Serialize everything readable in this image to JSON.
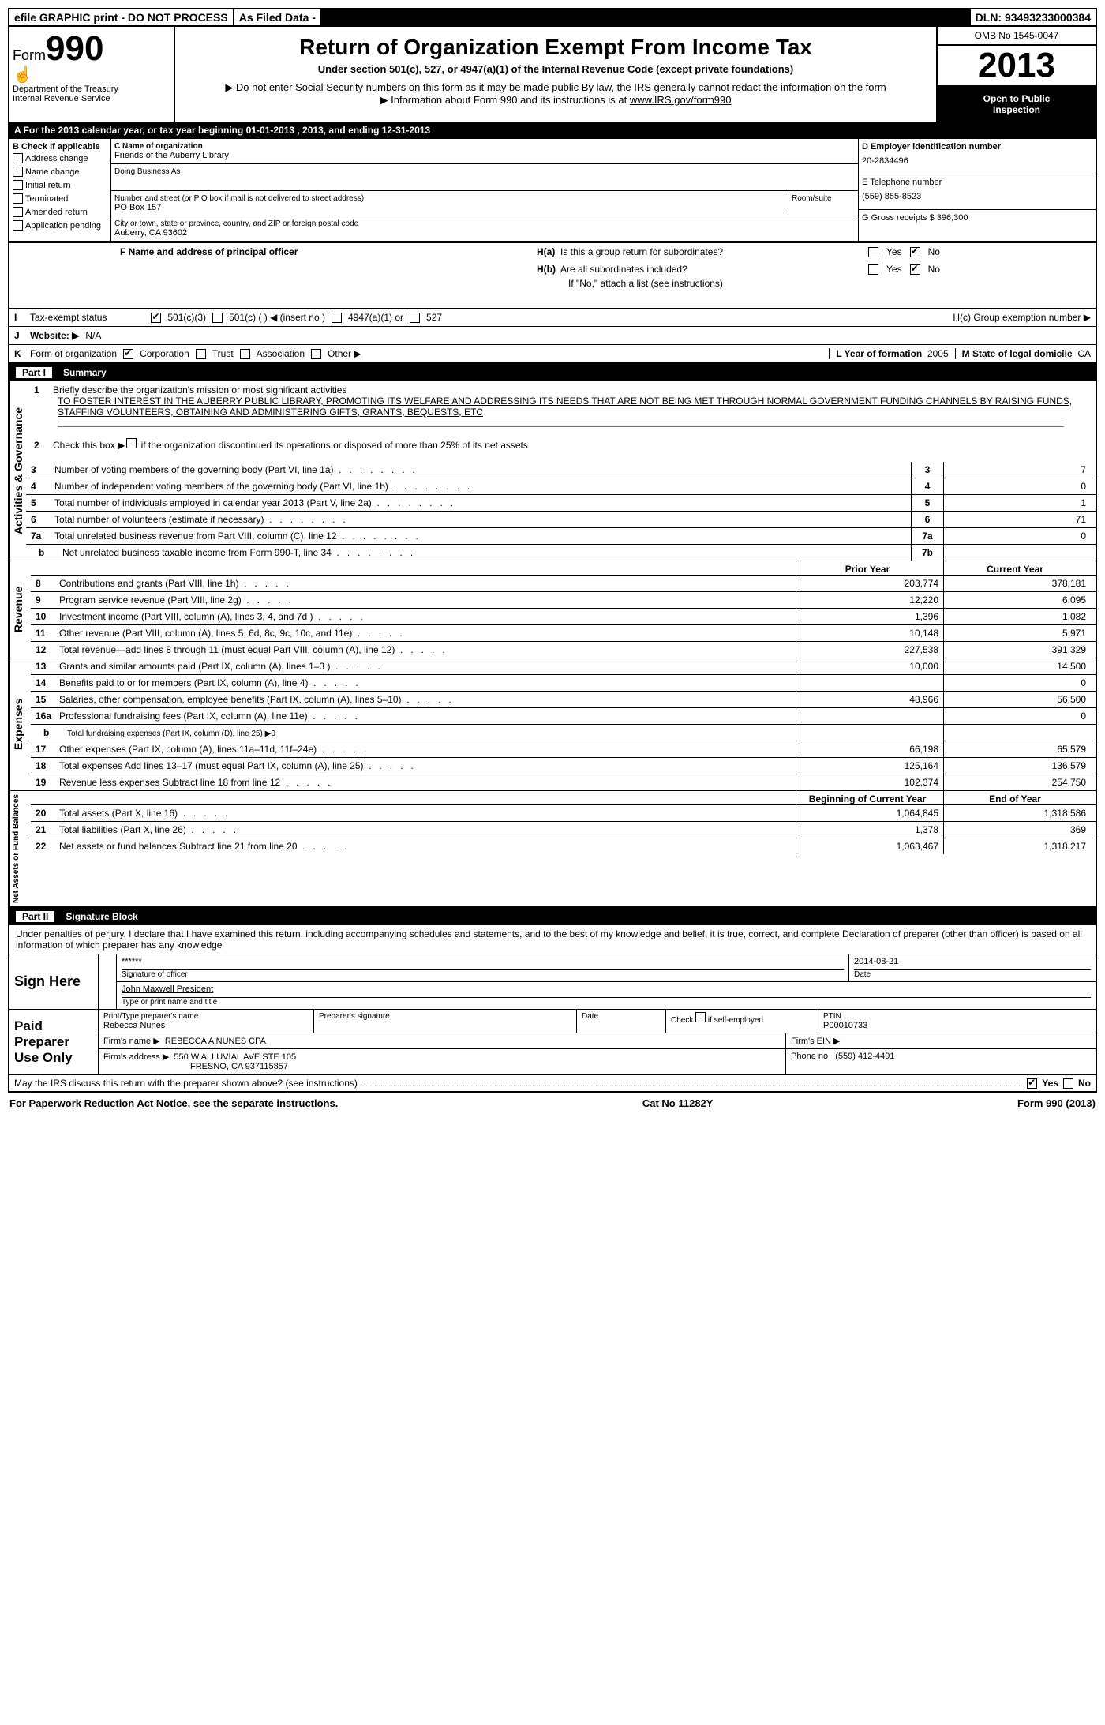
{
  "topbar": {
    "efile": "efile GRAPHIC print - DO NOT PROCESS",
    "asfiled": "As Filed Data -",
    "dln_label": "DLN:",
    "dln": "93493233000384"
  },
  "header": {
    "form_label": "Form",
    "form_num": "990",
    "dept1": "Department of the Treasury",
    "dept2": "Internal Revenue Service",
    "title": "Return of Organization Exempt From Income Tax",
    "sub1": "Under section 501(c), 527, or 4947(a)(1) of the Internal Revenue Code (except private foundations)",
    "sub2": "Do not enter Social Security numbers on this form as it may be made public  By law, the IRS generally cannot redact the information on the form",
    "sub3": "Information about Form 990 and its instructions is at ",
    "sub3_link": "www.IRS.gov/form990",
    "omb": "OMB No  1545-0047",
    "year": "2013",
    "black1": "Open to Public",
    "black2": "Inspection"
  },
  "rowA": "A  For the 2013 calendar year, or tax year beginning 01-01-2013     , 2013, and ending 12-31-2013",
  "B": {
    "label": "B  Check if applicable",
    "items": [
      "Address change",
      "Name change",
      "Initial return",
      "Terminated",
      "Amended return",
      "Application pending"
    ]
  },
  "C": {
    "name_lbl": "C Name of organization",
    "name": "Friends of the Auberry Library",
    "dba_lbl": "Doing Business As",
    "addr_lbl": "Number and street (or P O  box if mail is not delivered to street address)",
    "room_lbl": "Room/suite",
    "addr": "PO Box 157",
    "city_lbl": "City or town, state or province, country, and ZIP or foreign postal code",
    "city": "Auberry, CA  93602"
  },
  "D": {
    "lbl": "D Employer identification number",
    "val": "20-2834496"
  },
  "E": {
    "lbl": "E Telephone number",
    "val": "(559) 855-8523"
  },
  "G": {
    "lbl": "G Gross receipts $",
    "val": "396,300"
  },
  "F": {
    "lbl": "F   Name and address of principal officer"
  },
  "H": {
    "a": "H(a)  Is this a group return for subordinates?",
    "b": "H(b)  Are all subordinates included?",
    "b2": "If \"No,\" attach a list  (see instructions)",
    "c": "H(c)   Group exemption number ▶",
    "yes": "Yes",
    "no": "No"
  },
  "I": {
    "lbl": "I   Tax-exempt status",
    "o1": "501(c)(3)",
    "o2": "501(c) (  ) ◀ (insert no )",
    "o3": "4947(a)(1) or",
    "o4": "527"
  },
  "J": {
    "lbl": "J   Website: ▶",
    "val": "N/A"
  },
  "K": {
    "lbl": "K Form of organization",
    "o1": "Corporation",
    "o2": "Trust",
    "o3": "Association",
    "o4": "Other ▶"
  },
  "L": {
    "lbl": "L Year of formation",
    "val": "2005"
  },
  "M": {
    "lbl": "M State of legal domicile",
    "val": "CA"
  },
  "part1": {
    "part": "Part I",
    "title": "Summary"
  },
  "mission": {
    "n1": "1",
    "l1": "Briefly describe the organization's mission or most significant activities",
    "text": "TO FOSTER INTEREST IN THE AUBERRY PUBLIC LIBRARY, PROMOTING ITS WELFARE AND ADDRESSING ITS NEEDS THAT ARE NOT BEING MET THROUGH NORMAL GOVERNMENT FUNDING CHANNELS  BY RAISING FUNDS, STAFFING VOLUNTEERS, OBTAINING AND ADMINISTERING GIFTS, GRANTS, BEQUESTS, ETC",
    "n2": "2",
    "l2": "Check this box ▶     if the organization discontinued its operations or disposed of more than 25% of its net assets"
  },
  "governance": {
    "label": "Activities & Governance",
    "rows": [
      {
        "n": "3",
        "t": "Number of voting members of the governing body (Part VI, line 1a)",
        "b": "3",
        "v": "7"
      },
      {
        "n": "4",
        "t": "Number of independent voting members of the governing body (Part VI, line 1b)",
        "b": "4",
        "v": "0"
      },
      {
        "n": "5",
        "t": "Total number of individuals employed in calendar year 2013 (Part V, line 2a)",
        "b": "5",
        "v": "1"
      },
      {
        "n": "6",
        "t": "Total number of volunteers (estimate if necessary)",
        "b": "6",
        "v": "71"
      },
      {
        "n": "7a",
        "t": "Total unrelated business revenue from Part VIII, column (C), line 12",
        "b": "7a",
        "v": "0"
      },
      {
        "n": "b",
        "t": "Net unrelated business taxable income from Form 990-T, line 34",
        "b": "7b",
        "v": "",
        "sub": true
      }
    ]
  },
  "revenue": {
    "label": "Revenue",
    "hdr_prior": "Prior Year",
    "hdr_curr": "Current Year",
    "rows": [
      {
        "n": "8",
        "t": "Contributions and grants (Part VIII, line 1h)",
        "p": "203,774",
        "c": "378,181"
      },
      {
        "n": "9",
        "t": "Program service revenue (Part VIII, line 2g)",
        "p": "12,220",
        "c": "6,095"
      },
      {
        "n": "10",
        "t": "Investment income (Part VIII, column (A), lines 3, 4, and 7d )",
        "p": "1,396",
        "c": "1,082"
      },
      {
        "n": "11",
        "t": "Other revenue (Part VIII, column (A), lines 5, 6d, 8c, 9c, 10c, and 11e)",
        "p": "10,148",
        "c": "5,971"
      },
      {
        "n": "12",
        "t": "Total revenue—add lines 8 through 11 (must equal Part VIII, column (A), line 12)",
        "p": "227,538",
        "c": "391,329"
      }
    ]
  },
  "expenses": {
    "label": "Expenses",
    "rows": [
      {
        "n": "13",
        "t": "Grants and similar amounts paid (Part IX, column (A), lines 1–3 )",
        "p": "10,000",
        "c": "14,500"
      },
      {
        "n": "14",
        "t": "Benefits paid to or for members (Part IX, column (A), line 4)",
        "p": "",
        "c": "0"
      },
      {
        "n": "15",
        "t": "Salaries, other compensation, employee benefits (Part IX, column (A), lines 5–10)",
        "p": "48,966",
        "c": "56,500"
      },
      {
        "n": "16a",
        "t": "Professional fundraising fees (Part IX, column (A), line 11e)",
        "p": "",
        "c": "0"
      },
      {
        "n": "b",
        "t": "Total fundraising expenses (Part IX, column (D), line 25) ▶",
        "p": "",
        "c": "",
        "sub": true,
        "small": true,
        "inline": "0"
      },
      {
        "n": "17",
        "t": "Other expenses (Part IX, column (A), lines 11a–11d, 11f–24e)",
        "p": "66,198",
        "c": "65,579"
      },
      {
        "n": "18",
        "t": "Total expenses  Add lines 13–17 (must equal Part IX, column (A), line 25)",
        "p": "125,164",
        "c": "136,579"
      },
      {
        "n": "19",
        "t": "Revenue less expenses  Subtract line 18 from line 12",
        "p": "102,374",
        "c": "254,750"
      }
    ]
  },
  "netassets": {
    "label": "Net Assets or Fund Balances",
    "hdr_begin": "Beginning of Current Year",
    "hdr_end": "End of Year",
    "rows": [
      {
        "n": "20",
        "t": "Total assets (Part X, line 16)",
        "p": "1,064,845",
        "c": "1,318,586"
      },
      {
        "n": "21",
        "t": "Total liabilities (Part X, line 26)",
        "p": "1,378",
        "c": "369"
      },
      {
        "n": "22",
        "t": "Net assets or fund balances  Subtract line 21 from line 20",
        "p": "1,063,467",
        "c": "1,318,217"
      }
    ]
  },
  "part2": {
    "part": "Part II",
    "title": "Signature Block"
  },
  "sig": {
    "declaration": "Under penalties of perjury, I declare that I have examined this return, including accompanying schedules and statements, and to the best of my knowledge and belief, it is true, correct, and complete  Declaration of preparer (other than officer) is based on all information of which preparer has any knowledge",
    "sign_here": "Sign Here",
    "stars": "******",
    "sig_of_officer": "Signature of officer",
    "date_lbl": "Date",
    "date": "2014-08-21",
    "officer": "John Maxwell President",
    "officer_lbl": "Type or print name and title",
    "paid": "Paid Preparer Use Only",
    "prep_name_lbl": "Print/Type preparer's name",
    "prep_name": "Rebecca Nunes",
    "prep_sig_lbl": "Preparer's signature",
    "self_emp": "Check      if self-employed",
    "ptin_lbl": "PTIN",
    "ptin": "P00010733",
    "firm_name_lbl": "Firm's name    ▶",
    "firm_name": "REBECCA A NUNES CPA",
    "firm_ein_lbl": "Firm's EIN ▶",
    "firm_addr_lbl": "Firm's address ▶",
    "firm_addr1": "550 W ALLUVIAL AVE STE 105",
    "firm_addr2": "FRESNO, CA  937115857",
    "phone_lbl": "Phone no",
    "phone": "(559) 412-4491"
  },
  "disclose": {
    "q": "May the IRS discuss this return with the preparer shown above? (see instructions)",
    "yes": "Yes",
    "no": "No"
  },
  "footer": {
    "left": "For Paperwork Reduction Act Notice, see the separate instructions.",
    "mid": "Cat No  11282Y",
    "right": "Form 990 (2013)"
  }
}
